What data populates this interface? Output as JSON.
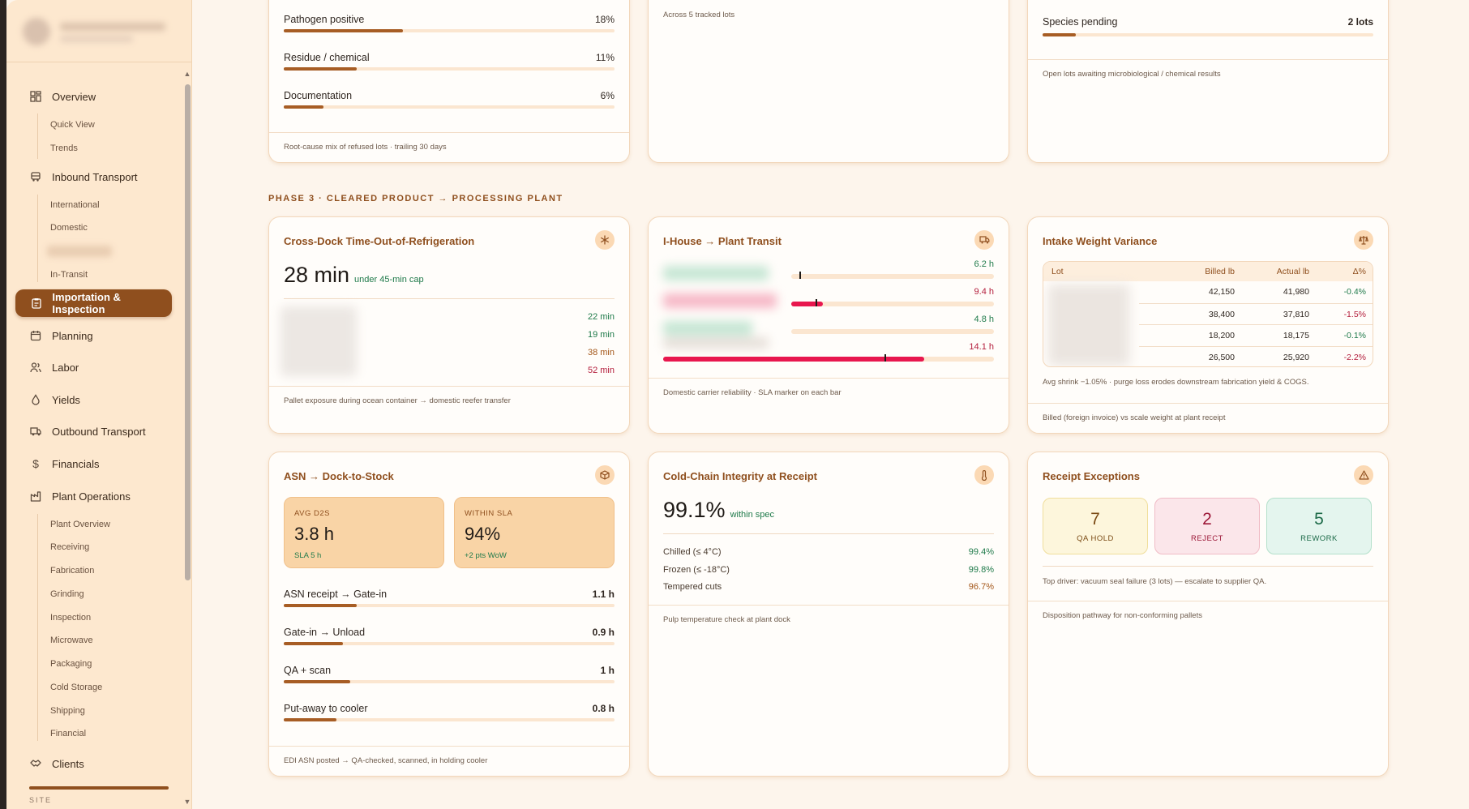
{
  "sidebar": {
    "items": [
      {
        "label": "Overview",
        "icon": "dashboard-icon",
        "subs": [
          "Quick View",
          "Trends"
        ]
      },
      {
        "label": "Inbound Transport",
        "icon": "truck-icon",
        "subs": [
          "International",
          "Domestic",
          "In-Transit"
        ]
      },
      {
        "label": "Importation & Inspection",
        "icon": "clipboard-icon",
        "active": true
      },
      {
        "label": "Planning",
        "icon": "calendar-icon"
      },
      {
        "label": "Labor",
        "icon": "users-icon"
      },
      {
        "label": "Yields",
        "icon": "drop-icon"
      },
      {
        "label": "Outbound Transport",
        "icon": "truck-icon"
      },
      {
        "label": "Financials",
        "icon": "dollar-icon"
      },
      {
        "label": "Plant Operations",
        "icon": "factory-icon",
        "subs": [
          "Plant Overview",
          "Receiving",
          "Fabrication",
          "Grinding",
          "Inspection",
          "Microwave",
          "Packaging",
          "Cold Storage",
          "Shipping",
          "Financial"
        ]
      },
      {
        "label": "Clients",
        "icon": "handshake-icon"
      }
    ],
    "site_label": "SITE"
  },
  "top_cards": {
    "refusal": {
      "rows": [
        {
          "label": "Pathogen positive",
          "value": "18%",
          "pct": 18
        },
        {
          "label": "Residue / chemical",
          "value": "11%",
          "pct": 11
        },
        {
          "label": "Documentation",
          "value": "6%",
          "pct": 6
        }
      ],
      "footer": "Root-cause mix of refused lots · trailing 30 days"
    },
    "middle": {
      "note": "Across 5 tracked lots"
    },
    "pending": {
      "row": {
        "label": "Species pending",
        "value": "2 lots",
        "pct": 10
      },
      "footer": "Open lots awaiting microbiological / chemical results"
    }
  },
  "phase_label": "PHASE 3 · CLEARED PRODUCT → PROCESSING PLANT",
  "crossdock": {
    "title": "Cross-Dock Time-Out-of-Refrigeration",
    "big": "28 min",
    "sub": "under 45-min cap",
    "values": [
      {
        "v": "22 min",
        "tone": "grn"
      },
      {
        "v": "19 min",
        "tone": "grn"
      },
      {
        "v": "38 min",
        "tone": "amb"
      },
      {
        "v": "52 min",
        "tone": "red"
      }
    ],
    "footer": "Pallet exposure during ocean container → domestic reefer transfer",
    "icon": "snowflake-icon"
  },
  "transit": {
    "title": "I-House → Plant Transit",
    "rows": [
      {
        "v": "6.2 h",
        "tone": "grn",
        "fill": 0,
        "marker": 0.45,
        "barcolor": "#e8b04a"
      },
      {
        "v": "9.4 h",
        "tone": "red",
        "fill": 0.52,
        "marker": 0.55,
        "barcolor": "#e8174e"
      },
      {
        "v": "4.8 h",
        "tone": "grn",
        "fill": 0,
        "marker": 0,
        "barcolor": "#e8b04a"
      },
      {
        "v": "14.1 h",
        "tone": "red",
        "fill": 0.79,
        "marker": 0.67,
        "barcolor": "#e8174e"
      }
    ],
    "footer": "Domestic carrier reliability · SLA marker on each bar",
    "icon": "truck-icon"
  },
  "weight": {
    "title": "Intake Weight Variance",
    "headers": [
      "Lot",
      "Billed lb",
      "Actual lb",
      "Δ%"
    ],
    "rows": [
      {
        "billed": "42,150",
        "actual": "41,980",
        "delta": "-0.4%",
        "tone": "grn"
      },
      {
        "billed": "38,400",
        "actual": "37,810",
        "delta": "-1.5%",
        "tone": "red"
      },
      {
        "billed": "18,200",
        "actual": "18,175",
        "delta": "-0.1%",
        "tone": "grn"
      },
      {
        "billed": "26,500",
        "actual": "25,920",
        "delta": "-2.2%",
        "tone": "red"
      }
    ],
    "note": "Avg shrink −1.05% · purge loss erodes downstream fabrication yield & COGS.",
    "footer": "Billed (foreign invoice) vs scale weight at plant receipt",
    "icon": "scale-icon"
  },
  "asn": {
    "title": "ASN → Dock-to-Stock",
    "kpis": [
      {
        "label": "AVG D2S",
        "value": "3.8 h",
        "sub": "SLA 5 h"
      },
      {
        "label": "WITHIN SLA",
        "value": "94%",
        "sub": "+2 pts WoW"
      }
    ],
    "rows": [
      {
        "label": "ASN receipt → Gate-in",
        "value": "1.1 h",
        "pct": 22
      },
      {
        "label": "Gate-in → Unload",
        "value": "0.9 h",
        "pct": 18
      },
      {
        "label": "QA + scan",
        "value": "1 h",
        "pct": 20
      },
      {
        "label": "Put-away to cooler",
        "value": "0.8 h",
        "pct": 16
      }
    ],
    "footer": "EDI ASN posted → QA-checked, scanned, in holding cooler",
    "icon": "box-icon"
  },
  "cold": {
    "title": "Cold-Chain Integrity at Receipt",
    "big": "99.1%",
    "sub": "within spec",
    "rows": [
      {
        "label": "Chilled (≤ 4°C)",
        "value": "99.4%",
        "tone": "grn"
      },
      {
        "label": "Frozen (≤ -18°C)",
        "value": "99.8%",
        "tone": "grn"
      },
      {
        "label": "Tempered cuts",
        "value": "96.7%",
        "tone": "amb"
      }
    ],
    "footer": "Pulp temperature check at plant dock",
    "icon": "thermometer-icon"
  },
  "exceptions": {
    "title": "Receipt Exceptions",
    "boxes": [
      {
        "value": "7",
        "label": "QA HOLD",
        "bg": "#fdf6dc",
        "border": "#f0de9c",
        "color": "#7a4a14"
      },
      {
        "value": "2",
        "label": "REJECT",
        "bg": "#fbe6ea",
        "border": "#f0bcc6",
        "color": "#9c1838"
      },
      {
        "value": "5",
        "label": "REWORK",
        "bg": "#e4f5ee",
        "border": "#b4e0cb",
        "color": "#1c6a48"
      }
    ],
    "note": "Top driver: vacuum seal failure (3 lots) — escalate to supplier QA.",
    "footer": "Disposition pathway for non-conforming pallets",
    "icon": "warning-icon"
  }
}
